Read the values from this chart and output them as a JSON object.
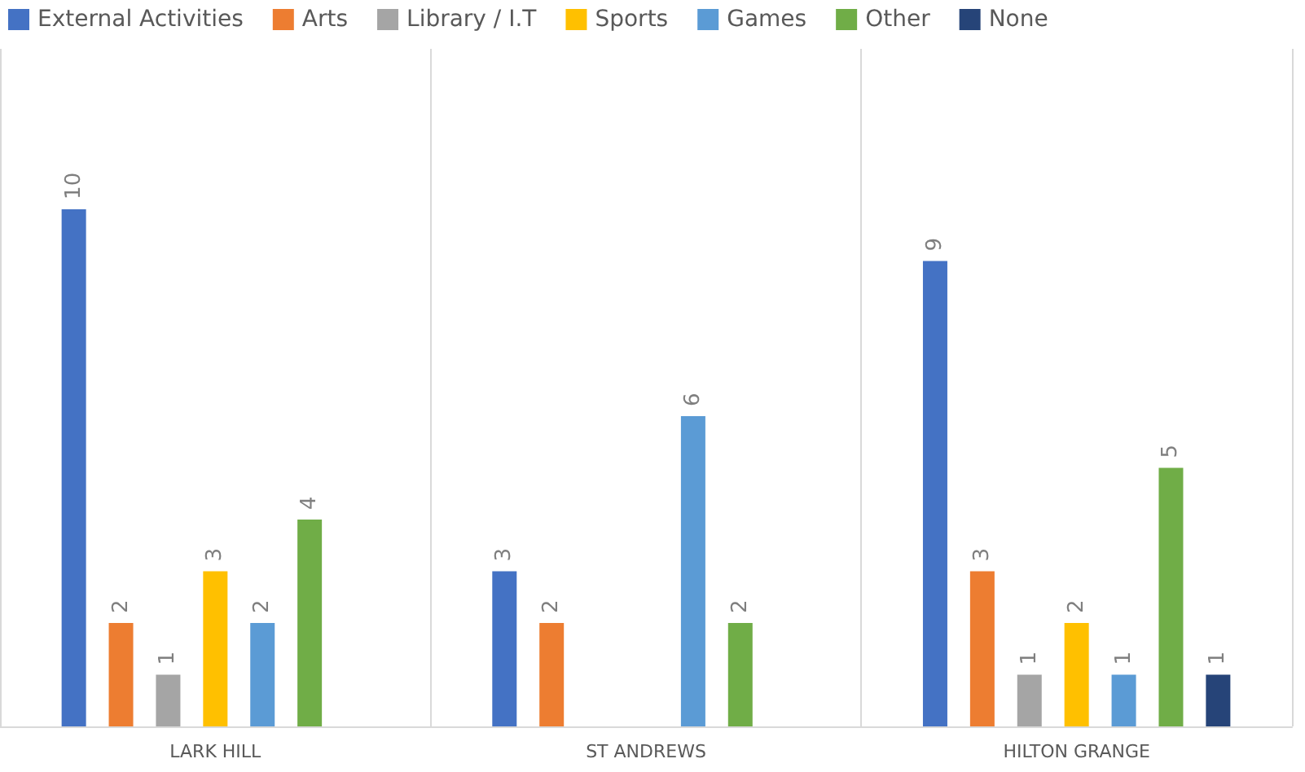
{
  "chart_data": {
    "type": "bar",
    "categories": [
      "LARK HILL",
      "ST ANDREWS",
      "HILTON GRANGE"
    ],
    "series": [
      {
        "name": "External Activities",
        "color": "#4472c4",
        "values": [
          10,
          3,
          9
        ]
      },
      {
        "name": "Arts",
        "color": "#ed7d31",
        "values": [
          2,
          2,
          3
        ]
      },
      {
        "name": "Library / I.T",
        "color": "#a5a5a5",
        "values": [
          1,
          null,
          1
        ]
      },
      {
        "name": "Sports",
        "color": "#ffc000",
        "values": [
          3,
          null,
          2
        ]
      },
      {
        "name": "Games",
        "color": "#5b9bd5",
        "values": [
          2,
          6,
          1
        ]
      },
      {
        "name": "Other",
        "color": "#70ad47",
        "values": [
          4,
          2,
          5
        ]
      },
      {
        "name": "None",
        "color": "#264478",
        "values": [
          null,
          null,
          1
        ]
      }
    ],
    "data_labels": true,
    "grid": "x",
    "legend": "top"
  }
}
